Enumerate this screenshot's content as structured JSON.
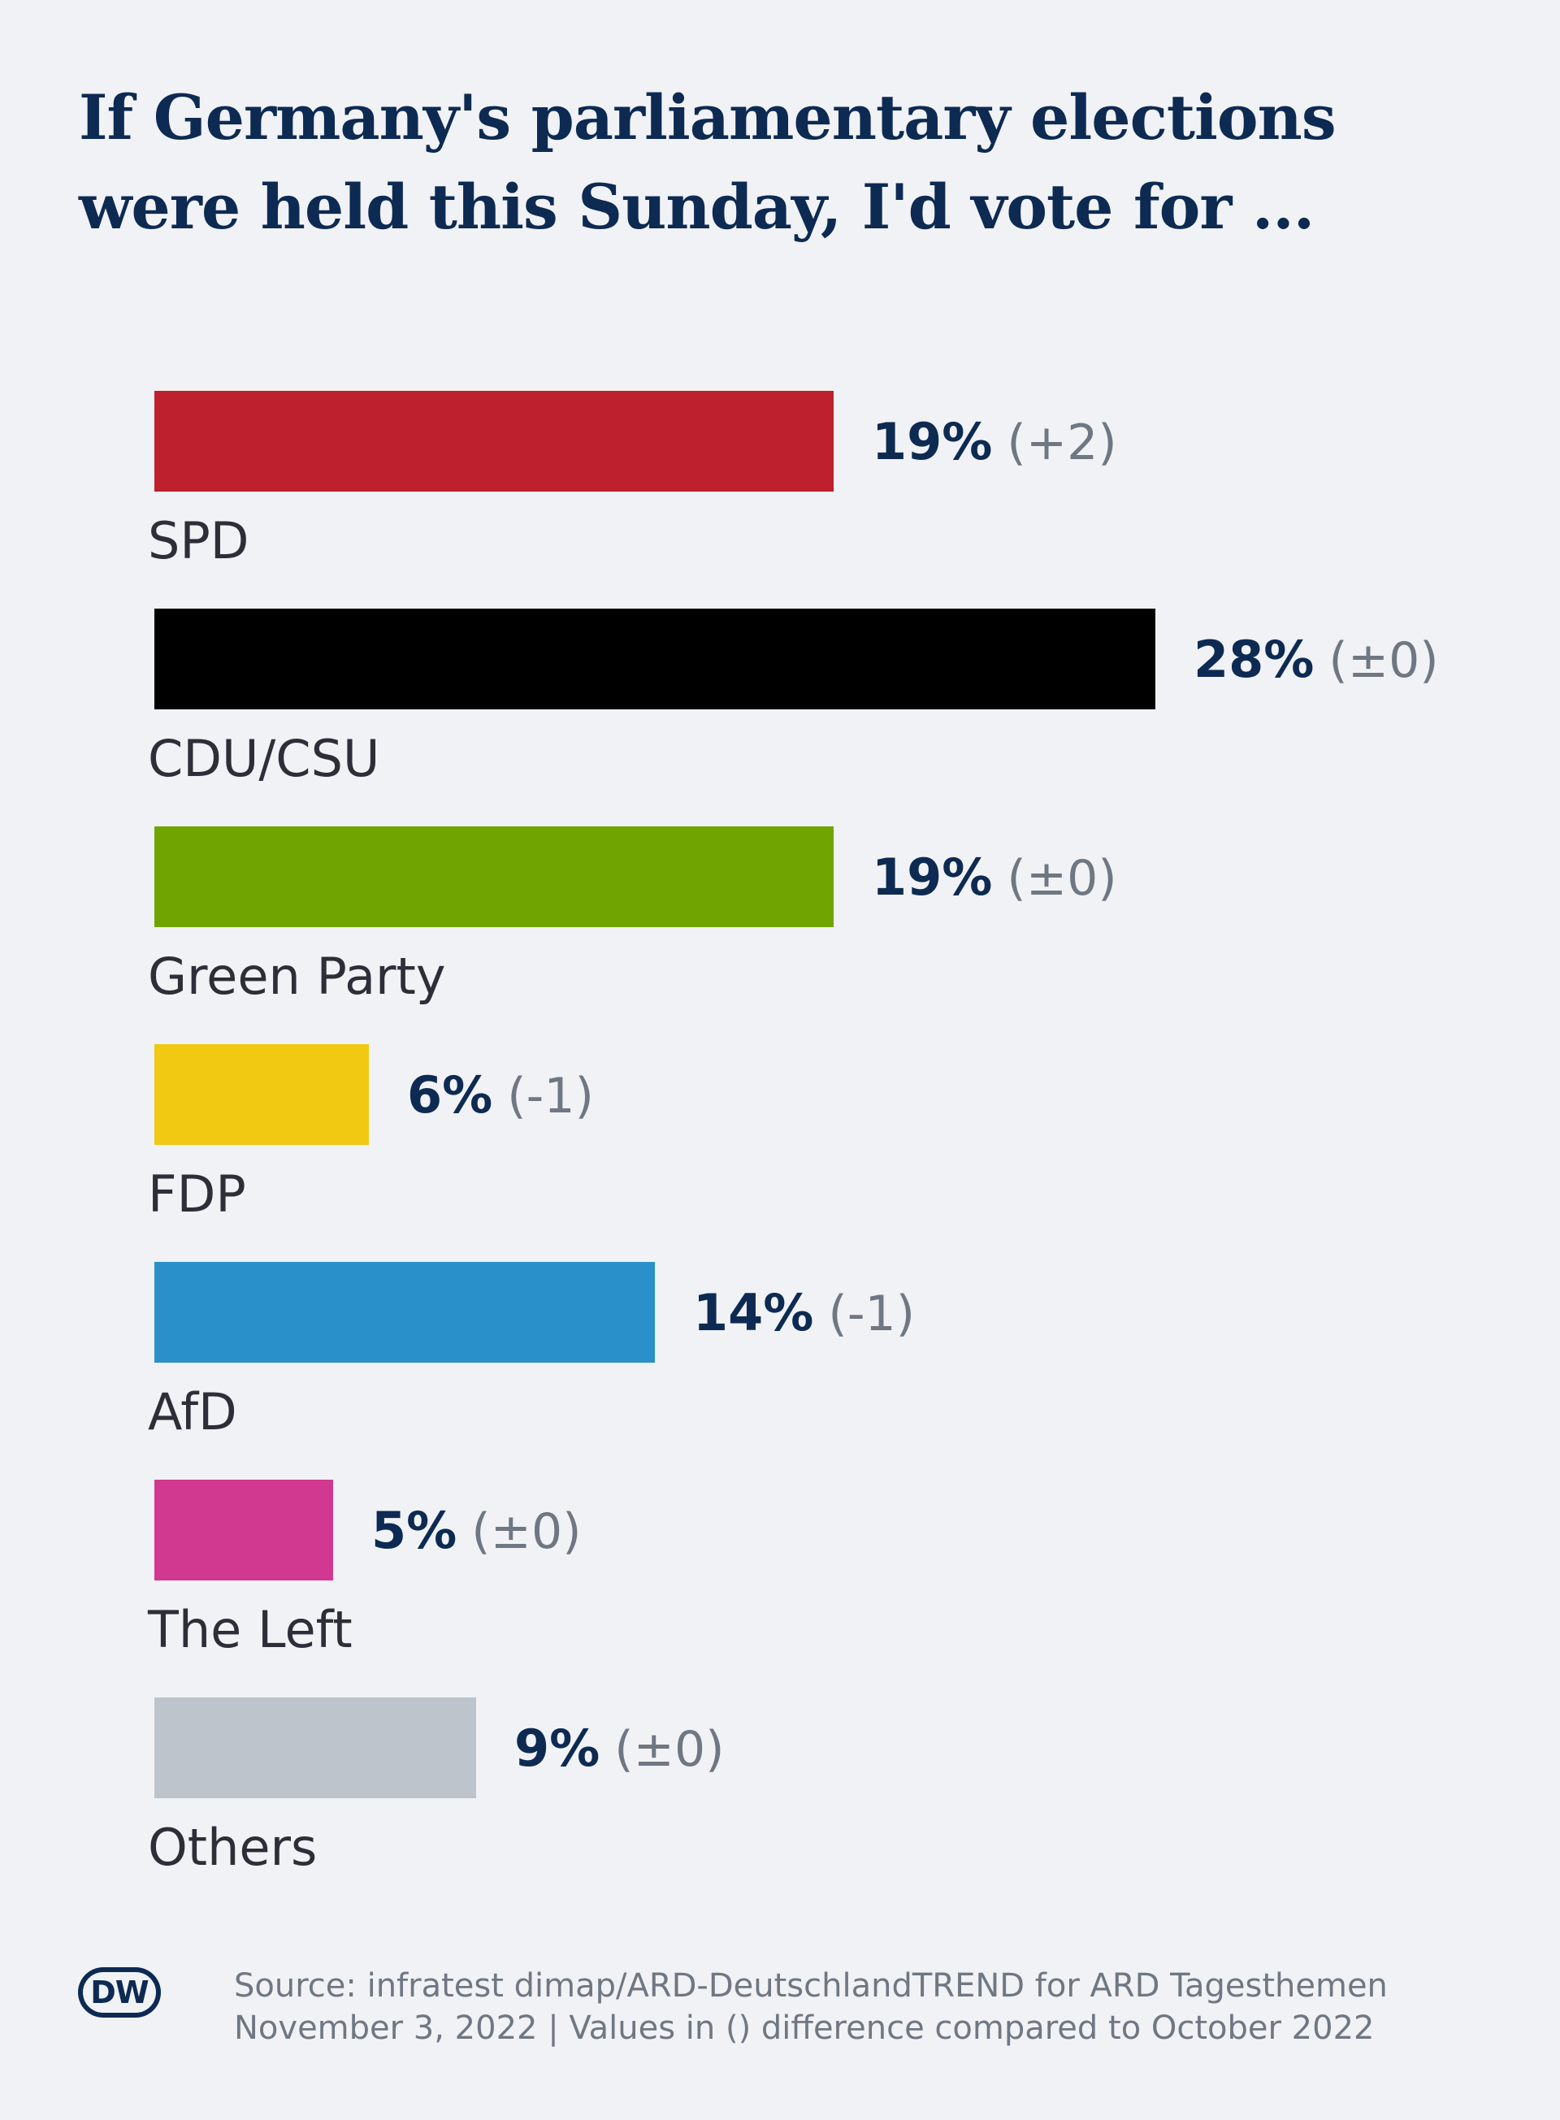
{
  "header": {
    "title_line1": "If Germany's parliamentary elections",
    "title_line2": "were held this Sunday, I'd vote for ..."
  },
  "chart_data": {
    "type": "bar",
    "orientation": "horizontal",
    "categories": [
      "SPD",
      "CDU/CSU",
      "Green Party",
      "FDP",
      "AfD",
      "The Left",
      "Others"
    ],
    "values": [
      19,
      28,
      19,
      6,
      14,
      5,
      9
    ],
    "value_labels": [
      "19%",
      "28%",
      "19%",
      "6%",
      "14%",
      "5%",
      "9%"
    ],
    "changes": [
      "(+2)",
      "(±0)",
      "(±0)",
      "(-1)",
      "(-1)",
      "(±0)",
      "(±0)"
    ],
    "colors": [
      "#be202e",
      "#000000",
      "#70a401",
      "#f1c812",
      "#2a90c9",
      "#d1388f",
      "#bdc4cc"
    ],
    "unit": "%",
    "xlim": [
      0,
      28
    ],
    "grid": false,
    "legend": "none"
  },
  "footer": {
    "logo_text": "DW",
    "source_line1": "Source: infratest dimap/ARD-DeutschlandTREND for ARD Tagesthemen",
    "source_line2": "November 3, 2022 | Values in () difference compared to October 2022"
  }
}
